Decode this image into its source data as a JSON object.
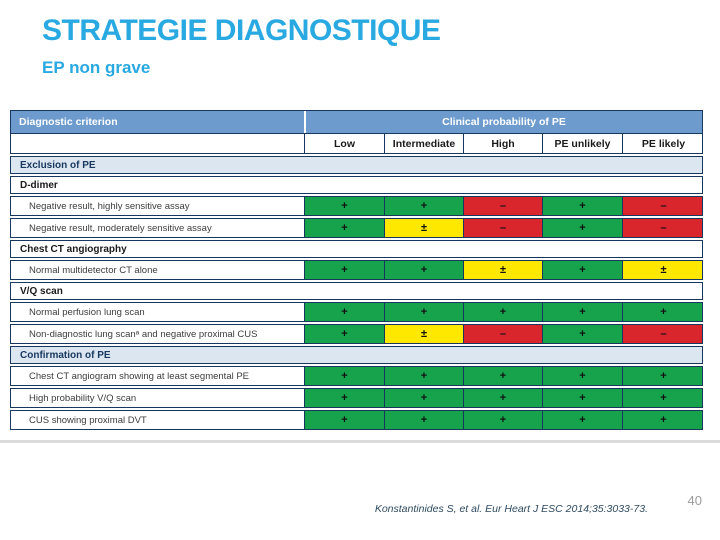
{
  "slide": {
    "title": "STRATEGIE DIAGNOSTIQUE",
    "subtitle": "EP non grave",
    "citation": "Konstantinides S, et al. Eur Heart J ESC 2014;35:3033-73.",
    "page_number": "40"
  },
  "colors": {
    "accent": "#29A9E1",
    "header_blue": "#6D9BCE",
    "section_blue": "#DCE6F1",
    "border_navy": "#17375E",
    "green": "#17A24C",
    "yellow": "#FFE800",
    "red": "#D8262C",
    "citation_text": "#2F4B61",
    "page_number_gray": "#9B9B9B"
  },
  "table": {
    "corner_label": "Diagnostic criterion",
    "group_label": "Clinical probability of PE",
    "columns": [
      "Low",
      "Intermediate",
      "High",
      "PE unlikely",
      "PE likely"
    ],
    "rows": [
      {
        "type": "section",
        "label": "Exclusion of PE"
      },
      {
        "type": "subsection",
        "label": "D-dimer"
      },
      {
        "type": "data",
        "label": "Negative result, highly sensitive assay",
        "cells": [
          {
            "symbol": "+",
            "color": "green"
          },
          {
            "symbol": "+",
            "color": "green"
          },
          {
            "symbol": "–",
            "color": "red"
          },
          {
            "symbol": "+",
            "color": "green"
          },
          {
            "symbol": "–",
            "color": "red"
          }
        ]
      },
      {
        "type": "data",
        "label": "Negative result, moderately sensitive assay",
        "cells": [
          {
            "symbol": "+",
            "color": "green"
          },
          {
            "symbol": "±",
            "color": "yellow"
          },
          {
            "symbol": "–",
            "color": "red"
          },
          {
            "symbol": "+",
            "color": "green"
          },
          {
            "symbol": "–",
            "color": "red"
          }
        ]
      },
      {
        "type": "subsection",
        "label": "Chest CT angiography"
      },
      {
        "type": "data",
        "label": "Normal multidetector CT alone",
        "cells": [
          {
            "symbol": "+",
            "color": "green"
          },
          {
            "symbol": "+",
            "color": "green"
          },
          {
            "symbol": "±",
            "color": "yellow"
          },
          {
            "symbol": "+",
            "color": "green"
          },
          {
            "symbol": "±",
            "color": "yellow"
          }
        ]
      },
      {
        "type": "subsection",
        "label": "V/Q scan"
      },
      {
        "type": "data",
        "label": "Normal perfusion lung scan",
        "cells": [
          {
            "symbol": "+",
            "color": "green"
          },
          {
            "symbol": "+",
            "color": "green"
          },
          {
            "symbol": "+",
            "color": "green"
          },
          {
            "symbol": "+",
            "color": "green"
          },
          {
            "symbol": "+",
            "color": "green"
          }
        ]
      },
      {
        "type": "data",
        "label": "Non-diagnostic lung scanᵃ and negative proximal CUS",
        "cells": [
          {
            "symbol": "+",
            "color": "green"
          },
          {
            "symbol": "±",
            "color": "yellow"
          },
          {
            "symbol": "–",
            "color": "red"
          },
          {
            "symbol": "+",
            "color": "green"
          },
          {
            "symbol": "–",
            "color": "red"
          }
        ]
      },
      {
        "type": "section",
        "label": "Confirmation of PE"
      },
      {
        "type": "data",
        "label": "Chest CT angiogram showing at least segmental PE",
        "cells": [
          {
            "symbol": "+",
            "color": "green"
          },
          {
            "symbol": "+",
            "color": "green"
          },
          {
            "symbol": "+",
            "color": "green"
          },
          {
            "symbol": "+",
            "color": "green"
          },
          {
            "symbol": "+",
            "color": "green"
          }
        ]
      },
      {
        "type": "data",
        "label": "High probability V/Q scan",
        "cells": [
          {
            "symbol": "+",
            "color": "green"
          },
          {
            "symbol": "+",
            "color": "green"
          },
          {
            "symbol": "+",
            "color": "green"
          },
          {
            "symbol": "+",
            "color": "green"
          },
          {
            "symbol": "+",
            "color": "green"
          }
        ]
      },
      {
        "type": "data",
        "label": "CUS showing proximal DVT",
        "cells": [
          {
            "symbol": "+",
            "color": "green"
          },
          {
            "symbol": "+",
            "color": "green"
          },
          {
            "symbol": "+",
            "color": "green"
          },
          {
            "symbol": "+",
            "color": "green"
          },
          {
            "symbol": "+",
            "color": "green"
          }
        ]
      }
    ]
  }
}
